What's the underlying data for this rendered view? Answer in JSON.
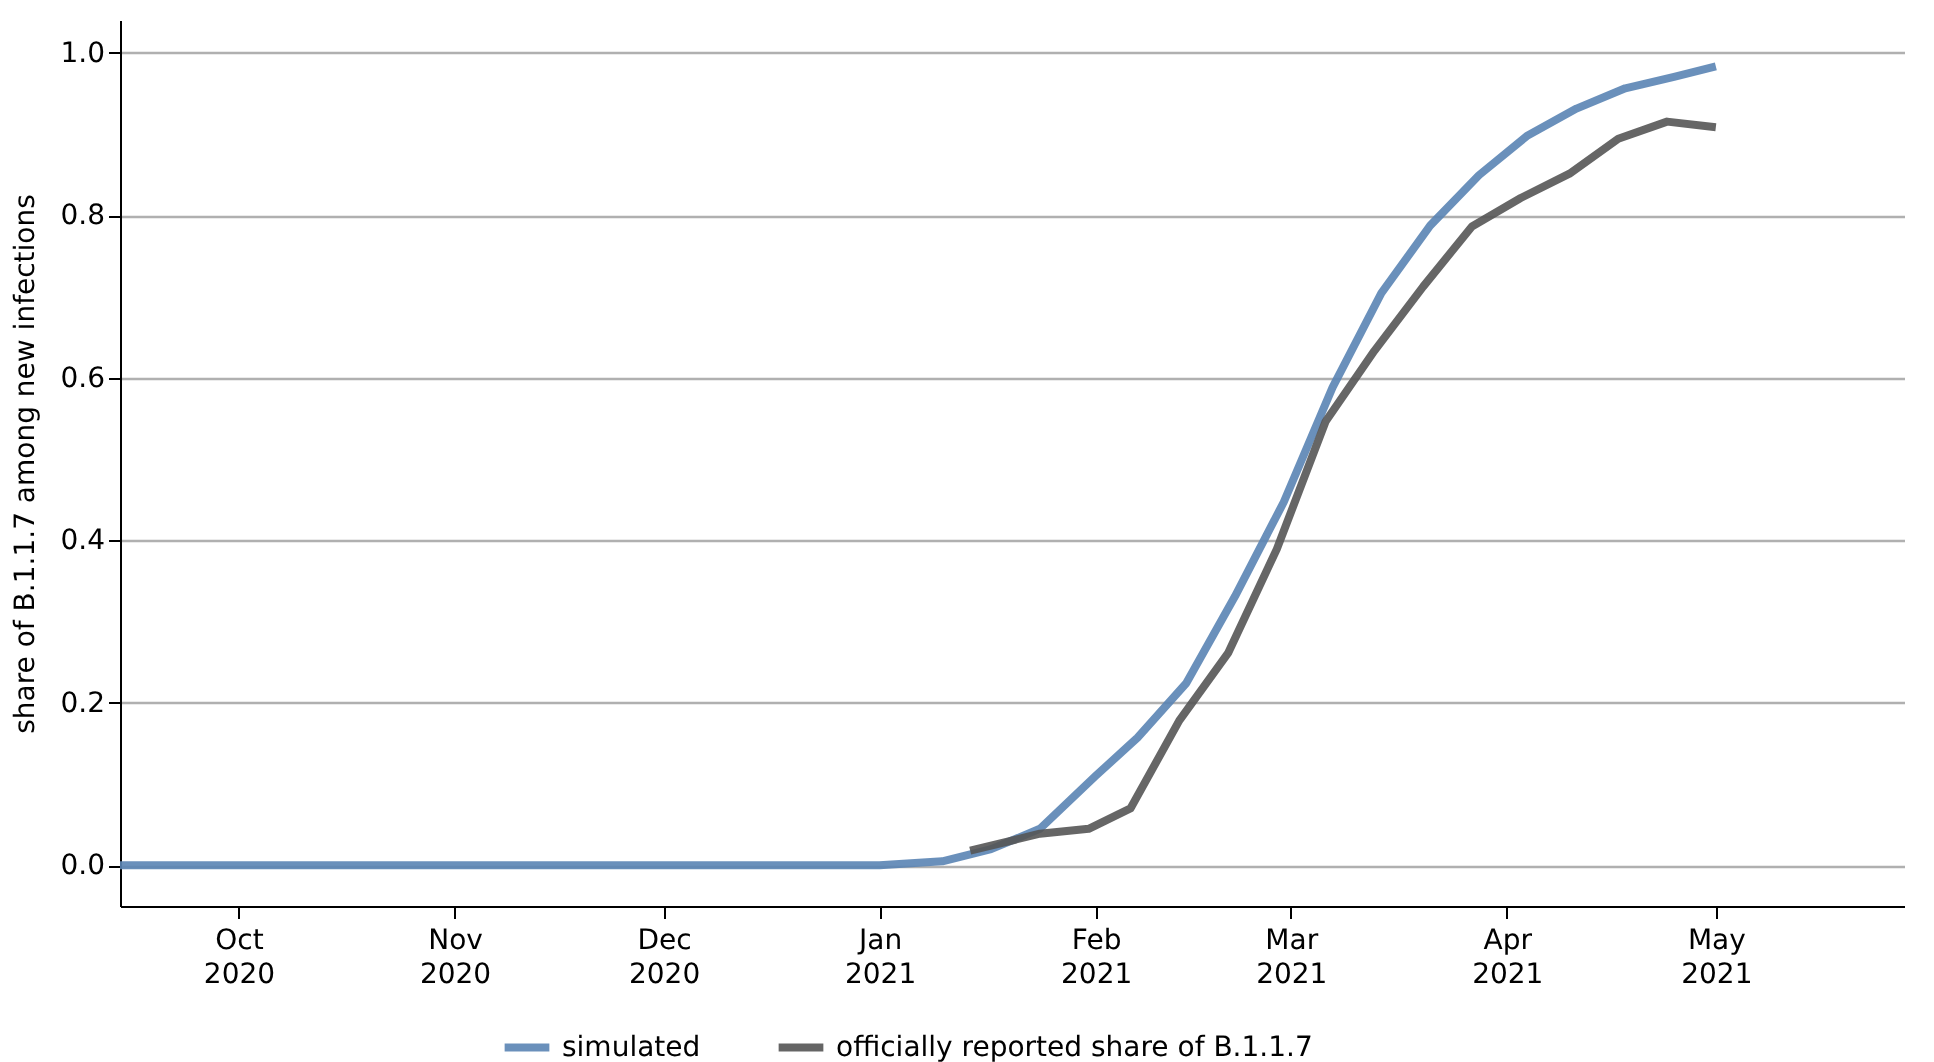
{
  "chart_data": {
    "type": "line",
    "ylabel": "share of B.1.1.7 among new infections",
    "xlim": [
      "2020-09-14",
      "2021-05-28"
    ],
    "xticks": [
      {
        "value": "2020-10-01",
        "label": "Oct 2020"
      },
      {
        "value": "2020-11-01",
        "label": "Nov 2020"
      },
      {
        "value": "2020-12-01",
        "label": "Dec 2020"
      },
      {
        "value": "2021-01-01",
        "label": "Jan 2021"
      },
      {
        "value": "2021-02-01",
        "label": "Feb 2021"
      },
      {
        "value": "2021-03-01",
        "label": "Mar 2021"
      },
      {
        "value": "2021-04-01",
        "label": "Apr 2021"
      },
      {
        "value": "2021-05-01",
        "label": "May 2021"
      }
    ],
    "ylim": [
      -0.05,
      1.04
    ],
    "yticks": [
      {
        "value": 0,
        "label": "0.0"
      },
      {
        "value": 0.2,
        "label": "0.2"
      },
      {
        "value": 0.4,
        "label": "0.4"
      },
      {
        "value": 0.6,
        "label": "0.6"
      },
      {
        "value": 0.8,
        "label": "0.8"
      },
      {
        "value": 1,
        "label": "1.0"
      }
    ],
    "grid": "y",
    "legend": "bottom",
    "line_style": "solid",
    "marker": "none",
    "series": [
      {
        "name": "simulated",
        "color": "#5a84b4",
        "x": [
          "2020-09-14",
          "2020-12-01",
          "2021-01-01",
          "2021-01-10",
          "2021-01-17",
          "2021-01-24",
          "2021-02-01",
          "2021-02-07",
          "2021-02-14",
          "2021-02-21",
          "2021-02-28",
          "2021-03-07",
          "2021-03-14",
          "2021-03-21",
          "2021-03-28",
          "2021-04-04",
          "2021-04-11",
          "2021-04-18",
          "2021-04-25",
          "2021-05-01"
        ],
        "values": [
          0,
          0,
          0,
          0.005,
          0.02,
          0.045,
          0.11,
          0.157,
          0.224,
          0.331,
          0.447,
          0.588,
          0.704,
          0.787,
          0.849,
          0.898,
          0.931,
          0.956,
          0.97,
          0.983
        ]
      },
      {
        "name": "officially reported share of B.1.1.7",
        "color": "#555555",
        "x": [
          "2021-01-14",
          "2021-01-24",
          "2021-01-31",
          "2021-02-06",
          "2021-02-13",
          "2021-02-20",
          "2021-02-27",
          "2021-03-06",
          "2021-03-13",
          "2021-03-20",
          "2021-03-27",
          "2021-04-03",
          "2021-04-10",
          "2021-04-17",
          "2021-04-24",
          "2021-05-01"
        ],
        "values": [
          0.018,
          0.039,
          0.045,
          0.07,
          0.178,
          0.261,
          0.389,
          0.546,
          0.633,
          0.712,
          0.786,
          0.821,
          0.851,
          0.894,
          0.915,
          0.908
        ]
      }
    ]
  }
}
